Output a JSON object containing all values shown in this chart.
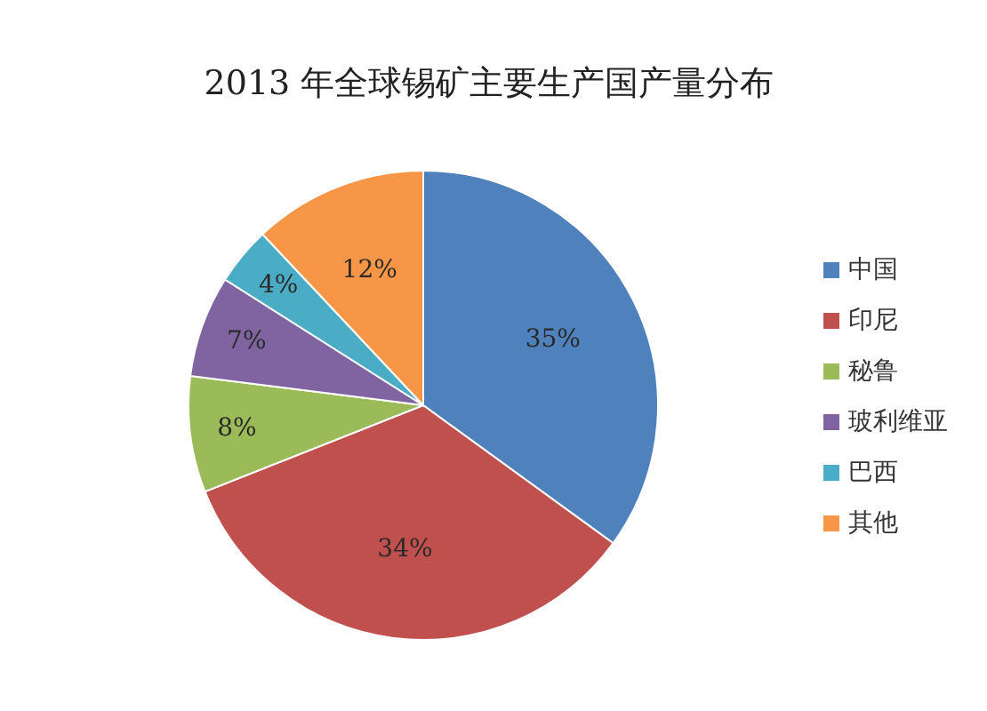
{
  "chart_data": {
    "type": "pie",
    "title": "2013 年全球锡矿主要生产国产量分布",
    "categories": [
      "中国",
      "印尼",
      "秘鲁",
      "玻利维亚",
      "巴西",
      "其他"
    ],
    "values": [
      35,
      34,
      8,
      7,
      4,
      12
    ],
    "colors": [
      "#4f81bd",
      "#c0504d",
      "#9bbb59",
      "#8064a2",
      "#4bacc6",
      "#f79646"
    ],
    "value_labels": [
      "35%",
      "34%",
      "8%",
      "7%",
      "4%",
      "12%"
    ],
    "legend": "right"
  }
}
